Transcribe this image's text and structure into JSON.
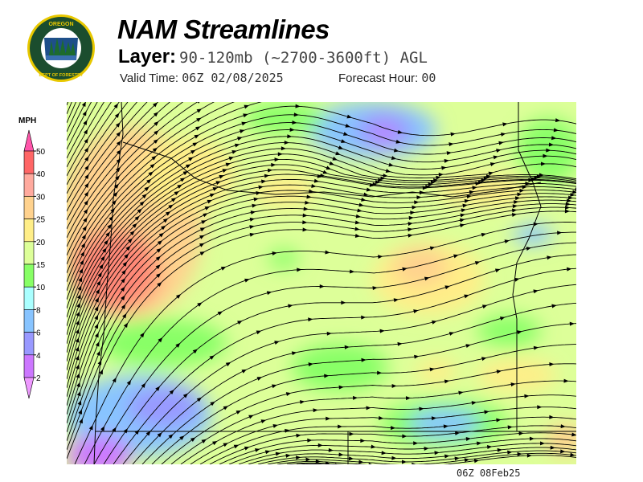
{
  "logo": {
    "top_text": "OREGON",
    "bottom_text": "DEPARTMENT OF FORESTRY",
    "colors": {
      "ring": "#1b4d2e",
      "border": "#e8c800"
    }
  },
  "header": {
    "title": "NAM Streamlines",
    "layer_label": "Layer:",
    "layer_value": "90-120mb (~2700-3600ft) AGL",
    "valid_label": "Valid Time:",
    "valid_value": "06Z 02/08/2025",
    "forecast_label": "Forecast Hour:",
    "forecast_value": "00"
  },
  "legend": {
    "unit": "MPH",
    "ticks": [
      "50",
      "40",
      "30",
      "25",
      "20",
      "15",
      "10",
      "8",
      "6",
      "4",
      "2"
    ],
    "colors": [
      "#ff55aa",
      "#ff6666",
      "#ffaa9e",
      "#ffd28e",
      "#ffee88",
      "#ddff99",
      "#88ff66",
      "#aaffff",
      "#88c4ff",
      "#9999ff",
      "#cc77ff",
      "#ee99ff"
    ]
  },
  "map": {
    "background": "#ddff99",
    "streamline_color": "#000000",
    "border_color": "#000000"
  },
  "footer": {
    "stamp": "06Z 08Feb25"
  }
}
